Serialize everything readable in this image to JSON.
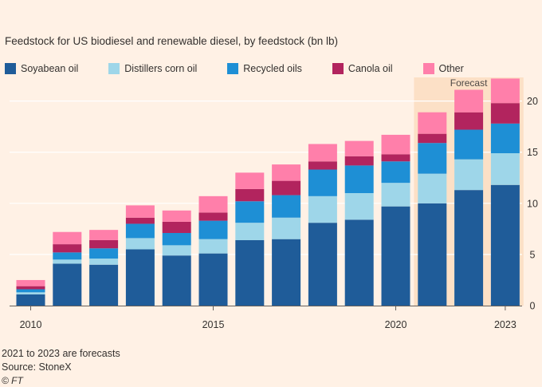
{
  "chart_data": {
    "type": "bar",
    "stacked": true,
    "subtitle": "Feedstock for US biodiesel and renewable diesel, by feedstock (bn lb)",
    "x": [
      2010,
      2011,
      2012,
      2013,
      2014,
      2015,
      2016,
      2017,
      2018,
      2019,
      2020,
      2021,
      2022,
      2023
    ],
    "x_tick_labels": [
      "2010",
      "2015",
      "2020",
      "2023"
    ],
    "x_tick_values": [
      2010,
      2015,
      2020,
      2023
    ],
    "y_ticks": [
      0,
      5,
      10,
      15,
      20
    ],
    "ylim": [
      0,
      22
    ],
    "grid": true,
    "y_axis_side": "right",
    "series": [
      {
        "name": "Soyabean oil",
        "color": "#1f5c99",
        "values": [
          1.1,
          4.1,
          4.0,
          5.5,
          4.9,
          5.1,
          6.4,
          6.5,
          8.1,
          8.4,
          9.7,
          10.0,
          11.3,
          11.8
        ]
      },
      {
        "name": "Distillers corn oil",
        "color": "#9ed6e9",
        "values": [
          0.2,
          0.4,
          0.6,
          1.1,
          1.0,
          1.4,
          1.7,
          2.1,
          2.6,
          2.6,
          2.3,
          2.9,
          3.0,
          3.1
        ]
      },
      {
        "name": "Recycled oils",
        "color": "#1e8fd5",
        "values": [
          0.3,
          0.7,
          1.0,
          1.4,
          1.2,
          1.8,
          2.1,
          2.2,
          2.6,
          2.7,
          2.1,
          3.0,
          2.9,
          2.9
        ]
      },
      {
        "name": "Canola oil",
        "color": "#b2245e",
        "values": [
          0.3,
          0.8,
          0.8,
          0.6,
          1.1,
          0.8,
          1.2,
          1.4,
          0.8,
          0.9,
          0.7,
          0.9,
          1.7,
          2.0
        ]
      },
      {
        "name": "Other",
        "color": "#ff7faa",
        "values": [
          0.6,
          1.2,
          1.0,
          1.2,
          1.1,
          1.6,
          1.6,
          1.6,
          1.7,
          1.5,
          1.9,
          2.1,
          2.2,
          2.4
        ]
      }
    ],
    "forecast_years": [
      2021,
      2022,
      2023
    ],
    "forecast_label": "Forecast",
    "forecast_shade_color": "#fce0c6"
  },
  "footer": {
    "note": "2021 to 2023 are forecasts",
    "source": "Source: StoneX",
    "brand": "© FT"
  }
}
